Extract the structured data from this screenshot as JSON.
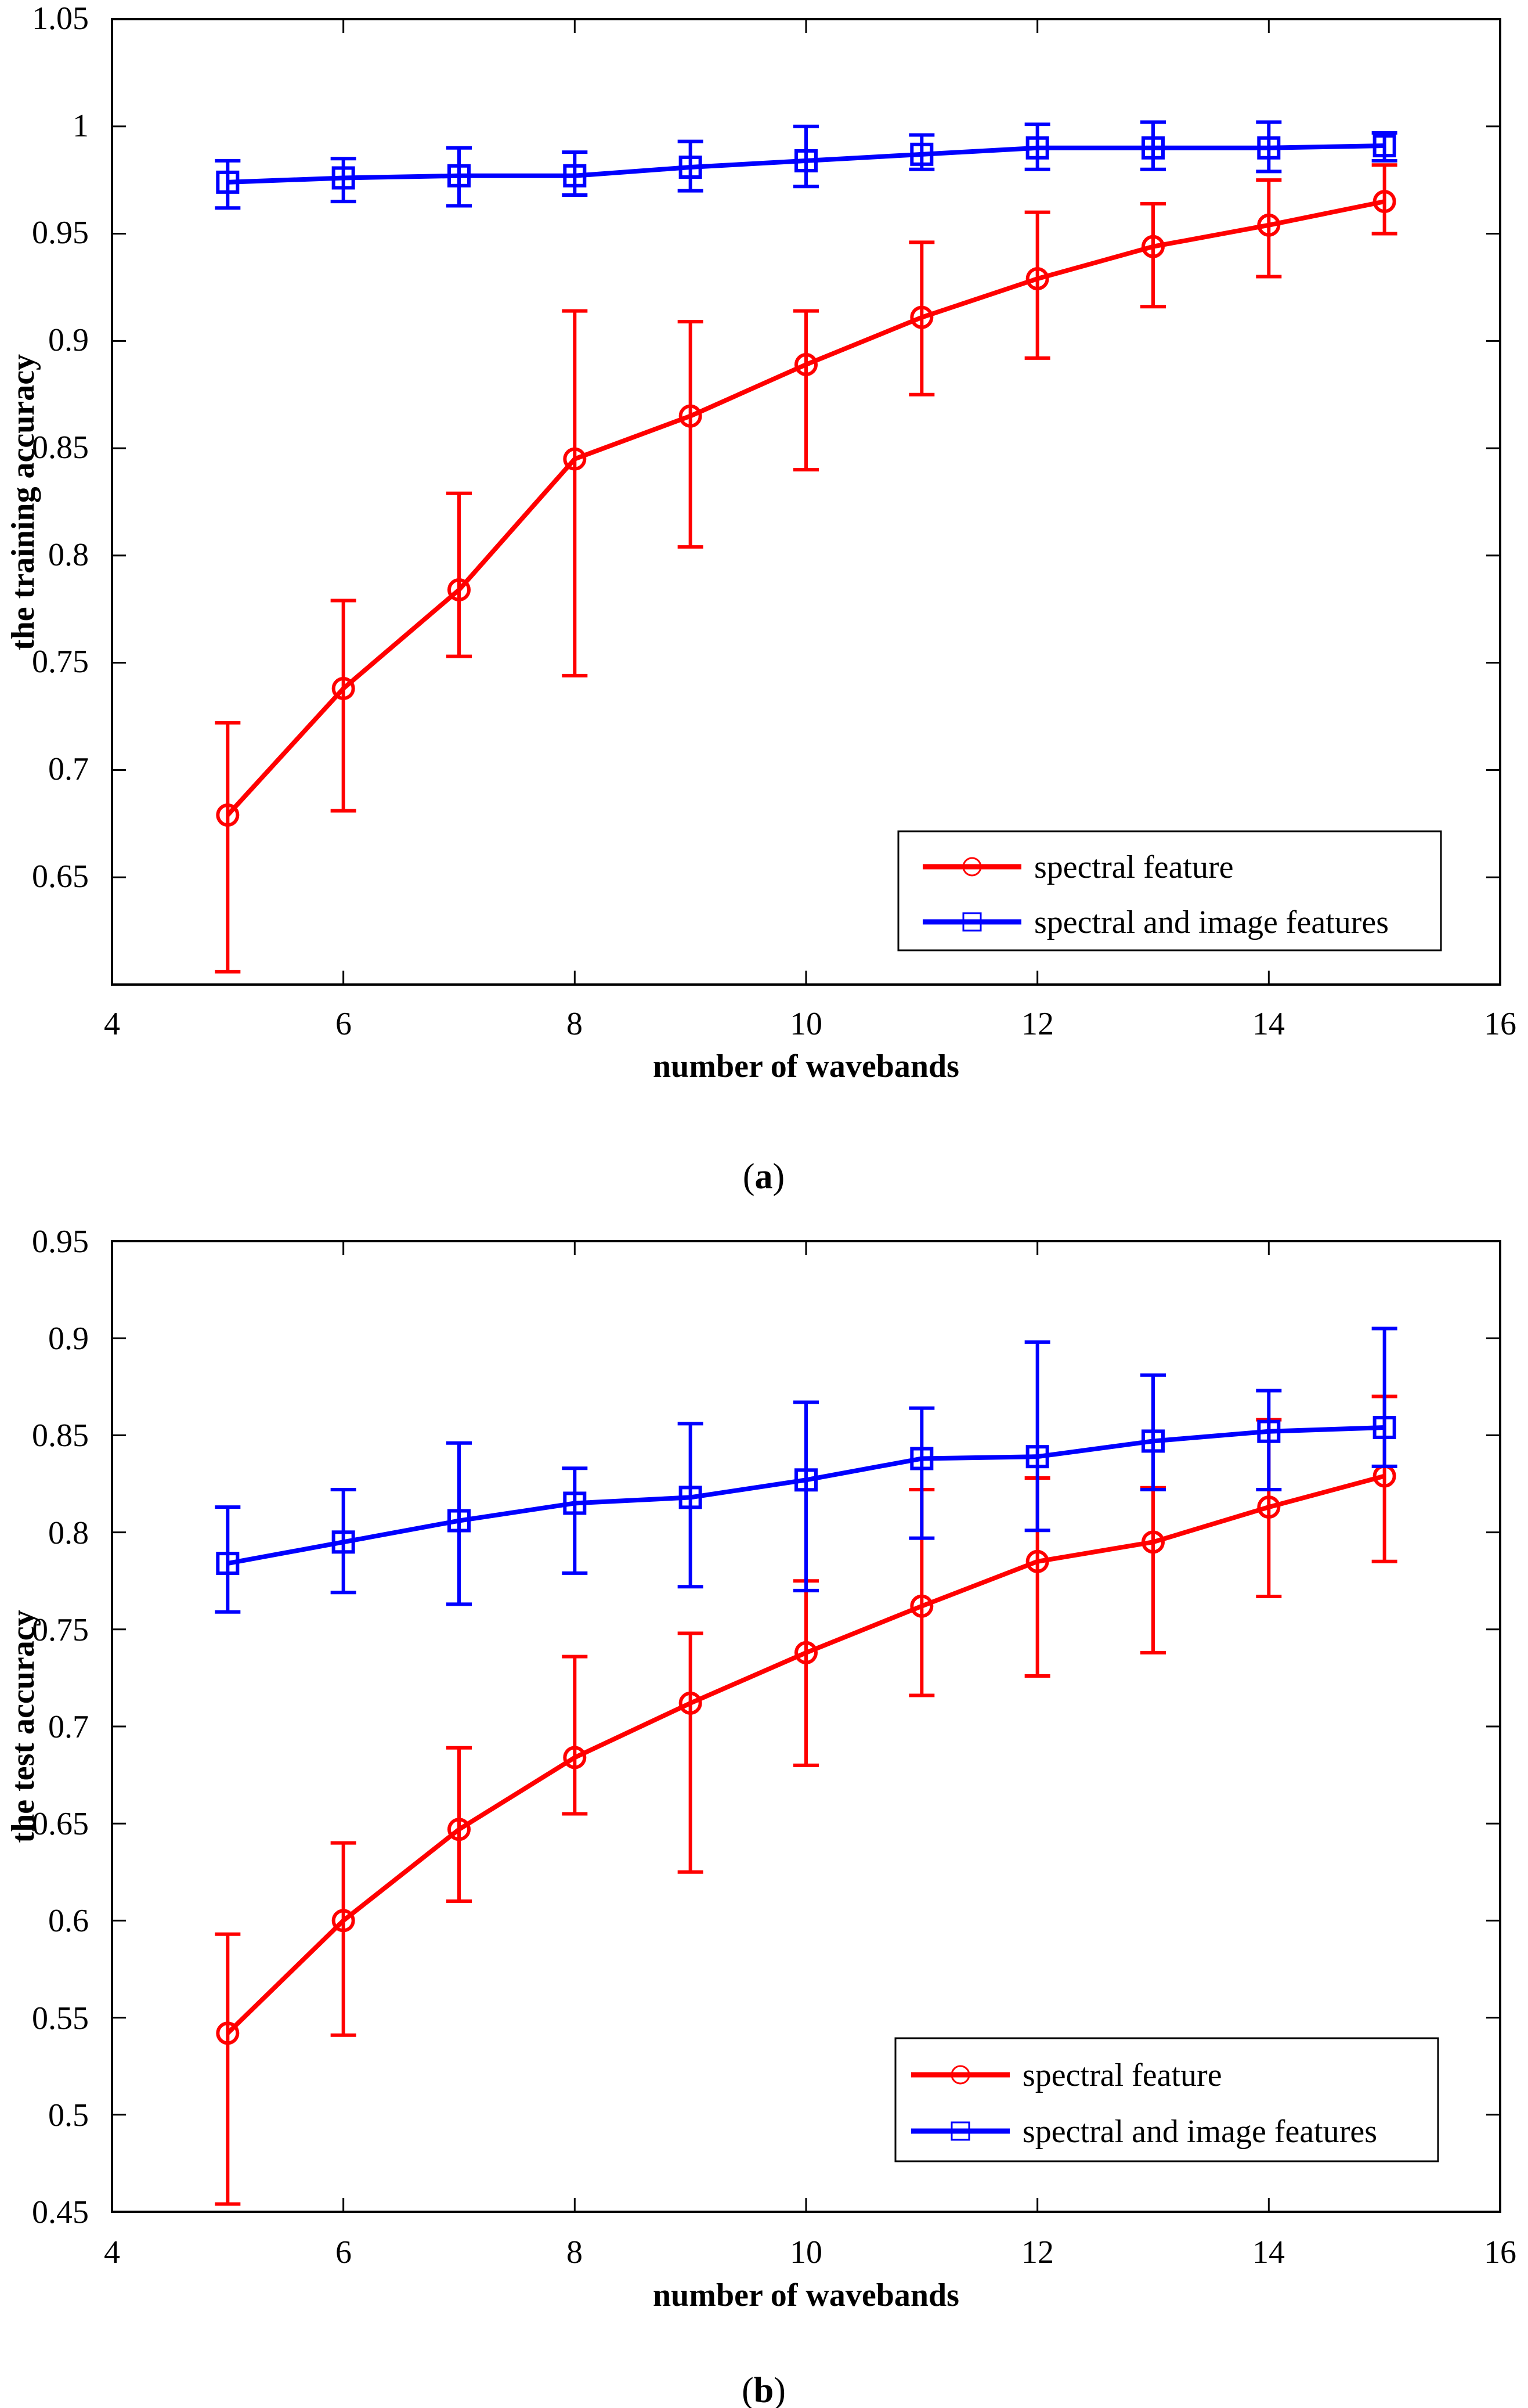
{
  "colors": {
    "spectral": "#ff0000",
    "combined": "#0000ff",
    "axis": "#000000",
    "background": "#ffffff"
  },
  "chart_data": [
    {
      "type": "line",
      "panel": "a",
      "caption": {
        "open": "(",
        "letter": "a",
        "close": ")"
      },
      "xlabel": "number of wavebands",
      "ylabel": "the training accuracy",
      "xlim": [
        4,
        16
      ],
      "ylim": [
        0.6,
        1.05
      ],
      "xticks": [
        "4",
        "6",
        "8",
        "10",
        "12",
        "14",
        "16"
      ],
      "yticks": [
        "0.65",
        "0.7",
        "0.75",
        "0.8",
        "0.85",
        "0.9",
        "0.95",
        "1",
        "1.05"
      ],
      "x": [
        5,
        6,
        7,
        8,
        9,
        10,
        11,
        12,
        13,
        14,
        15
      ],
      "series": [
        {
          "name": "spectral feature",
          "color": "#ff0000",
          "marker": "circle",
          "values": [
            0.679,
            0.738,
            0.784,
            0.845,
            0.865,
            0.889,
            0.911,
            0.929,
            0.944,
            0.954,
            0.965
          ],
          "err_low": [
            0.606,
            0.681,
            0.753,
            0.744,
            0.804,
            0.84,
            0.875,
            0.892,
            0.916,
            0.93,
            0.95
          ],
          "err_high": [
            0.722,
            0.779,
            0.829,
            0.914,
            0.909,
            0.914,
            0.946,
            0.96,
            0.964,
            0.975,
            0.982
          ]
        },
        {
          "name": "spectral and image features",
          "color": "#0000ff",
          "marker": "square",
          "values": [
            0.974,
            0.976,
            0.977,
            0.977,
            0.981,
            0.984,
            0.987,
            0.99,
            0.99,
            0.99,
            0.991
          ],
          "err_low": [
            0.962,
            0.965,
            0.963,
            0.968,
            0.97,
            0.972,
            0.98,
            0.98,
            0.98,
            0.979,
            0.984
          ],
          "err_high": [
            0.984,
            0.985,
            0.99,
            0.988,
            0.993,
            1.0,
            0.996,
            1.001,
            1.002,
            1.002,
            0.997
          ]
        }
      ],
      "legend": {
        "position": "bottom-right"
      }
    },
    {
      "type": "line",
      "panel": "b",
      "caption": {
        "open": "(",
        "letter": "b",
        "close": ")"
      },
      "xlabel": "number of wavebands",
      "ylabel": "the test accuracy",
      "xlim": [
        4,
        16
      ],
      "ylim": [
        0.45,
        0.95
      ],
      "xticks": [
        "4",
        "6",
        "8",
        "10",
        "12",
        "14",
        "16"
      ],
      "yticks": [
        "0.45",
        "0.5",
        "0.55",
        "0.6",
        "0.65",
        "0.7",
        "0.75",
        "0.8",
        "0.85",
        "0.9",
        "0.95"
      ],
      "x": [
        5,
        6,
        7,
        8,
        9,
        10,
        11,
        12,
        13,
        14,
        15
      ],
      "series": [
        {
          "name": "spectral feature",
          "color": "#ff0000",
          "marker": "circle",
          "values": [
            0.542,
            0.6,
            0.647,
            0.684,
            0.712,
            0.738,
            0.762,
            0.785,
            0.795,
            0.813,
            0.829
          ],
          "err_low": [
            0.454,
            0.541,
            0.61,
            0.655,
            0.625,
            0.68,
            0.716,
            0.726,
            0.738,
            0.767,
            0.785
          ],
          "err_high": [
            0.593,
            0.64,
            0.689,
            0.736,
            0.748,
            0.775,
            0.822,
            0.828,
            0.823,
            0.858,
            0.87
          ]
        },
        {
          "name": "spectral and image features",
          "color": "#0000ff",
          "marker": "square",
          "values": [
            0.784,
            0.795,
            0.806,
            0.815,
            0.818,
            0.827,
            0.838,
            0.839,
            0.847,
            0.852,
            0.854
          ],
          "err_low": [
            0.759,
            0.769,
            0.763,
            0.779,
            0.772,
            0.77,
            0.797,
            0.801,
            0.822,
            0.822,
            0.834
          ],
          "err_high": [
            0.813,
            0.822,
            0.846,
            0.833,
            0.856,
            0.867,
            0.864,
            0.898,
            0.881,
            0.873,
            0.905
          ]
        }
      ],
      "legend": {
        "position": "bottom-right"
      }
    }
  ]
}
